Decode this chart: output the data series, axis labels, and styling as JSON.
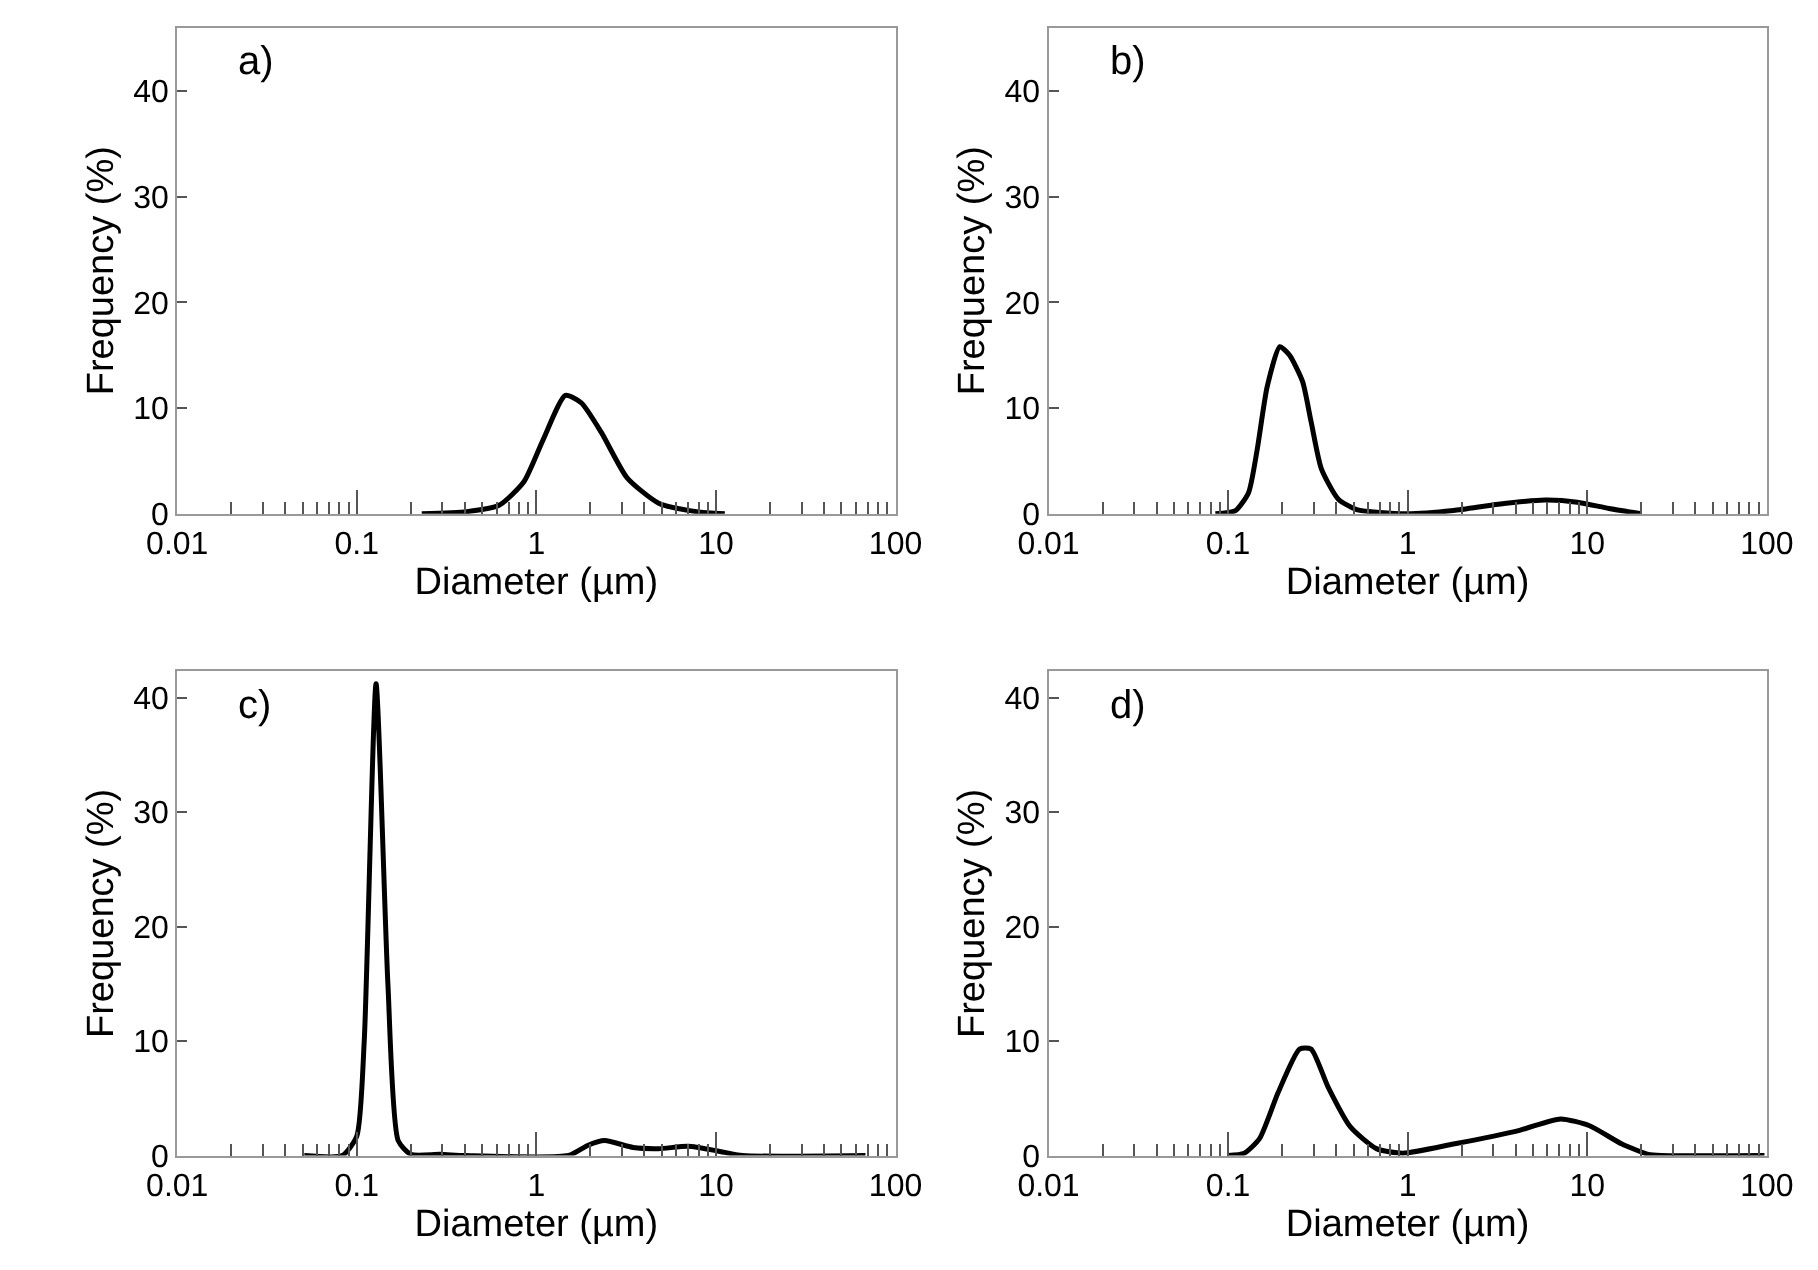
{
  "chart_data": [
    {
      "type": "line",
      "xlabel": "Diameter (µm)",
      "ylabel": "Frequency (%)",
      "annotations": [
        "a)"
      ],
      "log": "x",
      "xlim": [
        0.01,
        100
      ],
      "ylim": [
        0,
        46
      ],
      "yticks": [
        0,
        10,
        20,
        30,
        40
      ],
      "xticks": [
        0.01,
        {
          "value": 0.02,
          "label": null
        },
        {
          "value": 0.03,
          "label": null
        },
        {
          "value": 0.04,
          "label": null
        },
        {
          "value": 0.05,
          "label": null
        },
        {
          "value": 0.06,
          "label": null
        },
        {
          "value": 0.07,
          "label": null
        },
        {
          "value": 0.08,
          "label": null
        },
        {
          "value": 0.09,
          "label": null
        },
        0.1,
        {
          "value": 0.2,
          "label": null
        },
        {
          "value": 0.3,
          "label": null
        },
        {
          "value": 0.4,
          "label": null
        },
        {
          "value": 0.5,
          "label": null
        },
        {
          "value": 0.6,
          "label": null
        },
        {
          "value": 0.7,
          "label": null
        },
        {
          "value": 0.8,
          "label": null
        },
        {
          "value": 0.9,
          "label": null
        },
        1,
        {
          "value": 2,
          "label": null
        },
        {
          "value": 3,
          "label": null
        },
        {
          "value": 4,
          "label": null
        },
        {
          "value": 5,
          "label": null
        },
        {
          "value": 6,
          "label": null
        },
        {
          "value": 7,
          "label": null
        },
        {
          "value": 8,
          "label": null
        },
        {
          "value": 9,
          "label": null
        },
        10,
        {
          "value": 20,
          "label": null
        },
        {
          "value": 30,
          "label": null
        },
        {
          "value": 40,
          "label": null
        },
        {
          "value": 50,
          "label": null
        },
        {
          "value": 60,
          "label": null
        },
        {
          "value": 70,
          "label": null
        },
        {
          "value": 80,
          "label": null
        },
        {
          "value": 90,
          "label": null
        },
        100
      ],
      "x": [
        0.23,
        0.41,
        0.62,
        0.85,
        1.09,
        1.45,
        1.78,
        2.3,
        3.2,
        4.8,
        7.8,
        11.2
      ],
      "series": [
        {
          "color": "#000000",
          "values": [
            0,
            0.2,
            0.8,
            3,
            7,
            11.2,
            10.5,
            7.7,
            3.4,
            1,
            0.2,
            0
          ]
        }
      ]
    },
    {
      "type": "line",
      "xlabel": "Diameter (µm)",
      "ylabel": "Frequency (%)",
      "annotations": [
        "b)"
      ],
      "log": "x",
      "xlim": [
        0.01,
        100
      ],
      "ylim": [
        0,
        46
      ],
      "yticks": [
        0,
        10,
        20,
        30,
        40
      ],
      "xticks": [
        0.01,
        {
          "value": 0.02,
          "label": null
        },
        {
          "value": 0.03,
          "label": null
        },
        {
          "value": 0.04,
          "label": null
        },
        {
          "value": 0.05,
          "label": null
        },
        {
          "value": 0.06,
          "label": null
        },
        {
          "value": 0.07,
          "label": null
        },
        {
          "value": 0.08,
          "label": null
        },
        {
          "value": 0.09,
          "label": null
        },
        0.1,
        {
          "value": 0.2,
          "label": null
        },
        {
          "value": 0.3,
          "label": null
        },
        {
          "value": 0.4,
          "label": null
        },
        {
          "value": 0.5,
          "label": null
        },
        {
          "value": 0.6,
          "label": null
        },
        {
          "value": 0.7,
          "label": null
        },
        {
          "value": 0.8,
          "label": null
        },
        {
          "value": 0.9,
          "label": null
        },
        1,
        {
          "value": 2,
          "label": null
        },
        {
          "value": 3,
          "label": null
        },
        {
          "value": 4,
          "label": null
        },
        {
          "value": 5,
          "label": null
        },
        {
          "value": 6,
          "label": null
        },
        {
          "value": 7,
          "label": null
        },
        {
          "value": 8,
          "label": null
        },
        {
          "value": 9,
          "label": null
        },
        10,
        {
          "value": 20,
          "label": null
        },
        {
          "value": 30,
          "label": null
        },
        {
          "value": 40,
          "label": null
        },
        {
          "value": 50,
          "label": null
        },
        {
          "value": 60,
          "label": null
        },
        {
          "value": 70,
          "label": null
        },
        {
          "value": 80,
          "label": null
        },
        {
          "value": 90,
          "label": null
        },
        100
      ],
      "x": [
        0.085,
        0.11,
        0.13,
        0.145,
        0.165,
        0.194,
        0.22,
        0.26,
        0.29,
        0.33,
        0.41,
        0.52,
        0.97,
        1.8,
        3.2,
        5.8,
        8.8,
        13.2,
        20
      ],
      "series": [
        {
          "color": "#000000",
          "values": [
            0,
            0.3,
            2,
            6,
            12,
            15.8,
            15,
            12.5,
            8.7,
            4.3,
            1.4,
            0.4,
            0,
            0.3,
            0.9,
            1.3,
            1.1,
            0.5,
            0
          ]
        }
      ]
    },
    {
      "type": "line",
      "xlabel": "Diameter (µm)",
      "ylabel": "Frequency (%)",
      "annotations": [
        "c)"
      ],
      "log": "x",
      "xlim": [
        0.01,
        100
      ],
      "ylim": [
        0,
        42.3
      ],
      "yticks": [
        0,
        10,
        20,
        30,
        40
      ],
      "xticks": [
        0.01,
        {
          "value": 0.02,
          "label": null
        },
        {
          "value": 0.03,
          "label": null
        },
        {
          "value": 0.04,
          "label": null
        },
        {
          "value": 0.05,
          "label": null
        },
        {
          "value": 0.06,
          "label": null
        },
        {
          "value": 0.07,
          "label": null
        },
        {
          "value": 0.08,
          "label": null
        },
        {
          "value": 0.09,
          "label": null
        },
        0.1,
        {
          "value": 0.2,
          "label": null
        },
        {
          "value": 0.3,
          "label": null
        },
        {
          "value": 0.4,
          "label": null
        },
        {
          "value": 0.5,
          "label": null
        },
        {
          "value": 0.6,
          "label": null
        },
        {
          "value": 0.7,
          "label": null
        },
        {
          "value": 0.8,
          "label": null
        },
        {
          "value": 0.9,
          "label": null
        },
        1,
        {
          "value": 2,
          "label": null
        },
        {
          "value": 3,
          "label": null
        },
        {
          "value": 4,
          "label": null
        },
        {
          "value": 5,
          "label": null
        },
        {
          "value": 6,
          "label": null
        },
        {
          "value": 7,
          "label": null
        },
        {
          "value": 8,
          "label": null
        },
        {
          "value": 9,
          "label": null
        },
        10,
        {
          "value": 20,
          "label": null
        },
        {
          "value": 30,
          "label": null
        },
        {
          "value": 40,
          "label": null
        },
        {
          "value": 50,
          "label": null
        },
        {
          "value": 60,
          "label": null
        },
        {
          "value": 70,
          "label": null
        },
        {
          "value": 80,
          "label": null
        },
        {
          "value": 90,
          "label": null
        },
        100
      ],
      "x": [
        0.051,
        0.083,
        0.1,
        0.11,
        0.128,
        0.149,
        0.17,
        0.2,
        0.29,
        0.4,
        1.51,
        1.94,
        2.4,
        3.46,
        4.8,
        7.0,
        10.2,
        14.1,
        68
      ],
      "series": [
        {
          "color": "#000000",
          "values": [
            0,
            0,
            1.7,
            10,
            41.2,
            15,
            1.3,
            0.1,
            0.1,
            0,
            0,
            0.9,
            1.3,
            0.7,
            0.6,
            0.8,
            0.4,
            0,
            0
          ]
        }
      ]
    },
    {
      "type": "line",
      "xlabel": "Diameter (µm)",
      "ylabel": "Frequency (%)",
      "annotations": [
        "d)"
      ],
      "log": "x",
      "xlim": [
        0.01,
        100
      ],
      "ylim": [
        0,
        42.3
      ],
      "yticks": [
        0,
        10,
        20,
        30,
        40
      ],
      "xticks": [
        0.01,
        {
          "value": 0.02,
          "label": null
        },
        {
          "value": 0.03,
          "label": null
        },
        {
          "value": 0.04,
          "label": null
        },
        {
          "value": 0.05,
          "label": null
        },
        {
          "value": 0.06,
          "label": null
        },
        {
          "value": 0.07,
          "label": null
        },
        {
          "value": 0.08,
          "label": null
        },
        {
          "value": 0.09,
          "label": null
        },
        0.1,
        {
          "value": 0.2,
          "label": null
        },
        {
          "value": 0.3,
          "label": null
        },
        {
          "value": 0.4,
          "label": null
        },
        {
          "value": 0.5,
          "label": null
        },
        {
          "value": 0.6,
          "label": null
        },
        {
          "value": 0.7,
          "label": null
        },
        {
          "value": 0.8,
          "label": null
        },
        {
          "value": 0.9,
          "label": null
        },
        1,
        {
          "value": 2,
          "label": null
        },
        {
          "value": 3,
          "label": null
        },
        {
          "value": 4,
          "label": null
        },
        {
          "value": 5,
          "label": null
        },
        {
          "value": 6,
          "label": null
        },
        {
          "value": 7,
          "label": null
        },
        {
          "value": 8,
          "label": null
        },
        {
          "value": 9,
          "label": null
        },
        10,
        {
          "value": 20,
          "label": null
        },
        {
          "value": 30,
          "label": null
        },
        {
          "value": 40,
          "label": null
        },
        {
          "value": 50,
          "label": null
        },
        {
          "value": 60,
          "label": null
        },
        {
          "value": 70,
          "label": null
        },
        {
          "value": 80,
          "label": null
        },
        {
          "value": 90,
          "label": null
        },
        100
      ],
      "x": [
        0.1,
        0.123,
        0.15,
        0.19,
        0.25,
        0.29,
        0.36,
        0.48,
        0.67,
        0.94,
        1.8,
        4.2,
        7.1,
        10.3,
        15.6,
        21.9,
        26,
        97
      ],
      "series": [
        {
          "color": "#000000",
          "values": [
            0,
            0.2,
            1.5,
            5.5,
            9.3,
            9.3,
            6,
            2.5,
            0.6,
            0.2,
            1,
            2.2,
            3.2,
            2.6,
            1,
            0.1,
            0,
            0
          ]
        }
      ]
    }
  ]
}
